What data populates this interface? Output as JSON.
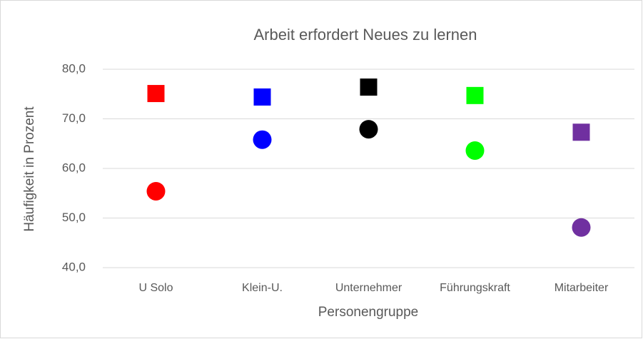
{
  "chart_data": {
    "type": "dot",
    "title": "Arbeit erfordert Neues zu lernen",
    "x_label": "Personengruppe",
    "y_label": "Häufigkeit in Prozent",
    "categories": [
      "U Solo",
      "Klein-U.",
      "Unternehmer",
      "Führungskraft",
      "Mitarbeiter"
    ],
    "series": [
      {
        "marker": "square",
        "colors": [
          "#ff0000",
          "#0000ff",
          "#000000",
          "#00ff00",
          "#7030a0"
        ],
        "values": [
          75.1,
          74.4,
          76.4,
          74.7,
          67.3
        ]
      },
      {
        "marker": "circle",
        "colors": [
          "#ff0000",
          "#0000ff",
          "#000000",
          "#00ff00",
          "#7030a0"
        ],
        "values": [
          55.4,
          65.8,
          67.9,
          63.6,
          48.1
        ]
      }
    ],
    "ylim": [
      40,
      80
    ],
    "yticks": [
      {
        "value": 40,
        "label": "40,0"
      },
      {
        "value": 50,
        "label": "50,0"
      },
      {
        "value": 60,
        "label": "60,0"
      },
      {
        "value": 70,
        "label": "70,0"
      },
      {
        "value": 80,
        "label": "80,0"
      }
    ],
    "grid": true
  }
}
